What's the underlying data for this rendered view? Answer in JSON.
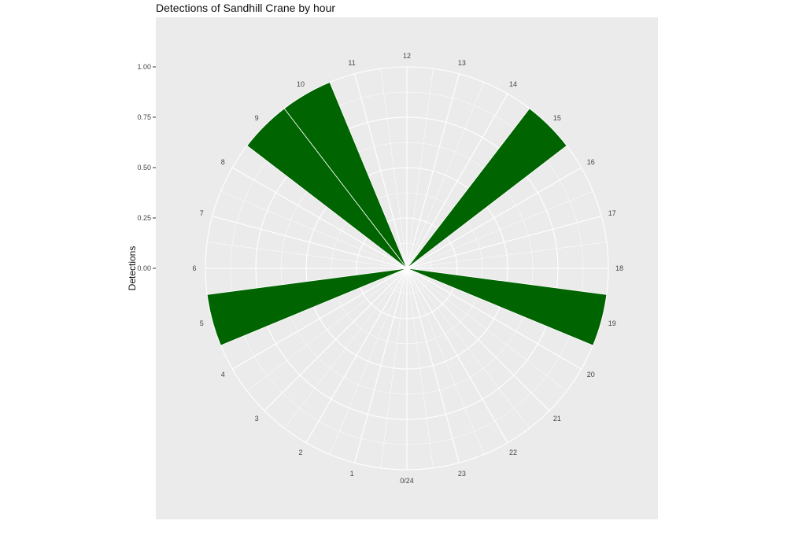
{
  "chart_data": {
    "type": "bar",
    "coord": "polar",
    "title": "Detections of Sandhill Crane by hour",
    "ylabel": "Detections",
    "xlabel": "",
    "ylim": [
      0,
      1
    ],
    "y_ticks": [
      "0.00",
      "0.25",
      "0.50",
      "0.75",
      "1.00"
    ],
    "x_tick_labels": [
      "0/24",
      "1",
      "2",
      "3",
      "4",
      "5",
      "6",
      "7",
      "8",
      "9",
      "10",
      "11",
      "12",
      "13",
      "14",
      "15",
      "16",
      "17",
      "18",
      "19",
      "20",
      "21",
      "22",
      "23"
    ],
    "categories": [
      0,
      1,
      2,
      3,
      4,
      5,
      6,
      7,
      8,
      9,
      10,
      11,
      12,
      13,
      14,
      15,
      16,
      17,
      18,
      19,
      20,
      21,
      22,
      23
    ],
    "values": [
      0,
      0,
      0,
      0,
      0,
      1,
      0,
      0,
      0,
      1,
      1,
      0,
      0,
      0,
      0,
      1,
      0,
      0,
      0,
      1,
      0,
      0,
      0,
      0
    ],
    "bar_color": "#006400",
    "panel_color": "#ebebeb",
    "grid_color": "#ffffff"
  }
}
